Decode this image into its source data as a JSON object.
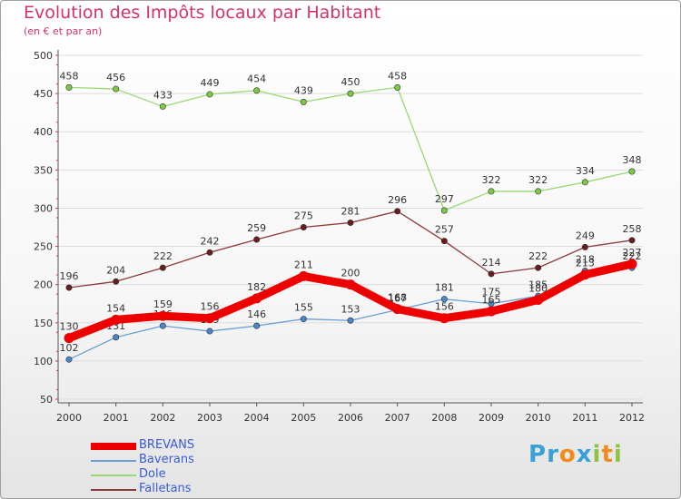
{
  "chart_data": {
    "type": "line",
    "title": "Evolution des Impôts locaux par Habitant",
    "subtitle": "(en € et par an)",
    "xlabel": "",
    "ylabel": "",
    "categories": [
      "2000",
      "2001",
      "2002",
      "2003",
      "2004",
      "2005",
      "2006",
      "2007",
      "2008",
      "2009",
      "2010",
      "2011",
      "2012"
    ],
    "ylim": [
      50,
      500
    ],
    "yticks": [
      50,
      100,
      150,
      200,
      250,
      300,
      350,
      400,
      450,
      500
    ],
    "grid": true,
    "series": [
      {
        "name": "Dole",
        "color": "#99d873",
        "dot": "#7cc943",
        "values": [
          458,
          456,
          433,
          449,
          454,
          439,
          450,
          458,
          297,
          322,
          322,
          334,
          348
        ]
      },
      {
        "name": "Falletans",
        "color": "#8b3a3a",
        "dot": "#6b1c1c",
        "values": [
          196,
          204,
          222,
          242,
          259,
          275,
          281,
          296,
          257,
          214,
          222,
          249,
          258
        ]
      },
      {
        "name": "Baverans",
        "color": "#6b9fd4",
        "dot": "#4a86c8",
        "values": [
          102,
          131,
          146,
          139,
          146,
          155,
          153,
          167,
          181,
          175,
          185,
          218,
          222
        ]
      },
      {
        "name": "BREVANS",
        "color": "#ee0000",
        "dot": "#ee0000",
        "values": [
          130,
          154,
          159,
          156,
          182,
          211,
          200,
          168,
          156,
          165,
          180,
          213,
          227
        ]
      }
    ]
  },
  "legend": [
    {
      "label": "BREVANS",
      "color": "#ee0000"
    },
    {
      "label": "Baverans",
      "color": "#6b9fd4"
    },
    {
      "label": "Dole",
      "color": "#99d873"
    },
    {
      "label": "Falletans",
      "color": "#8b3a3a"
    }
  ],
  "logo": {
    "letters": [
      "P",
      "r",
      "o",
      "x",
      "i",
      "t",
      "i"
    ],
    "colors": [
      "#3aa0d8",
      "#3aa0d8",
      "#f08c1c",
      "#3aa0d8",
      "#8cc63e",
      "#f08c1c",
      "#8cc63e"
    ]
  }
}
